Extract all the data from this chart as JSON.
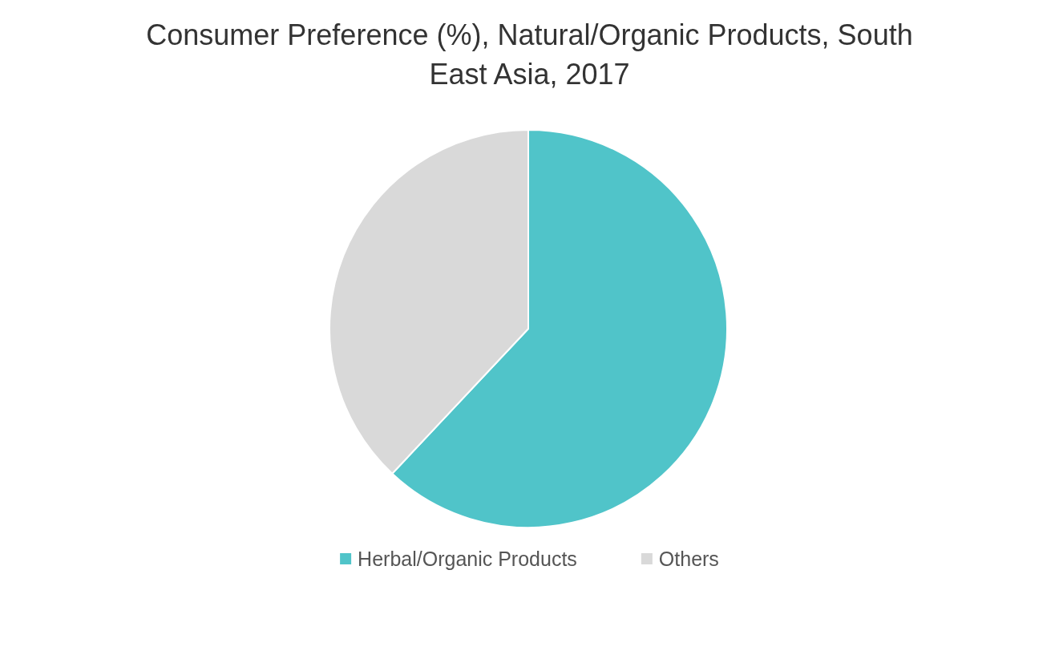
{
  "chart_data": {
    "type": "pie",
    "title": "Consumer Preference (%), Natural/Organic Products, South East Asia, 2017",
    "categories": [
      "Herbal/Organic Products",
      "Others"
    ],
    "values": [
      62,
      38
    ],
    "colors": [
      "#50c4c9",
      "#d9d9d9"
    ],
    "legend": "bottom"
  }
}
